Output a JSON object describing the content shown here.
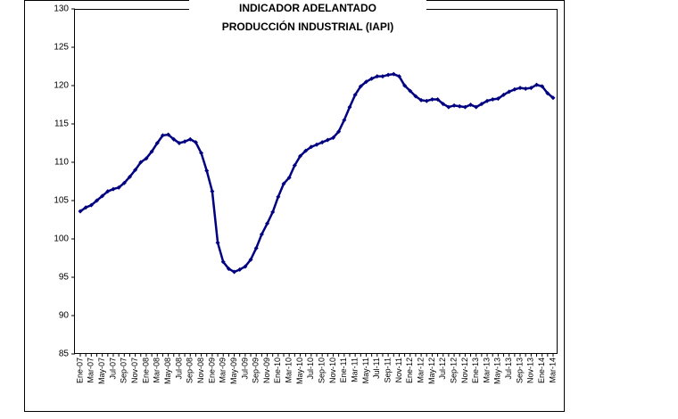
{
  "chart_data": {
    "type": "line",
    "title": [
      "INDICADOR ADELANTADO",
      "PRODUCCIÓN INDUSTRIAL (IAPI)"
    ],
    "categories": [
      "Ene-07",
      null,
      "Mar-07",
      null,
      "May-07",
      null,
      "Jul-07",
      null,
      "Sep-07",
      null,
      "Nov-07",
      null,
      "Ene-08",
      null,
      "Mar-08",
      null,
      "May-08",
      null,
      "Jul-08",
      null,
      "Sep-08",
      null,
      "Nov-08",
      null,
      "Ene-09",
      null,
      "Mar-09",
      null,
      "May-09",
      null,
      "Jul-09",
      null,
      "Sep-09",
      null,
      "Nov-09",
      null,
      "Ene-10",
      null,
      "Mar-10",
      null,
      "May-10",
      null,
      "Jul-10",
      null,
      "Sep-10",
      null,
      "Nov-10",
      null,
      "Ene-11",
      null,
      "Mar-11",
      null,
      "May-11",
      null,
      "Jul-11",
      null,
      "Sep-11",
      null,
      "Nov-11",
      null,
      "Ene-12",
      null,
      "Mar-12",
      null,
      "May-12",
      null,
      "Jul-12",
      null,
      "Sep-12",
      null,
      "Nov-12",
      null,
      "Ene-13",
      null,
      "Mar-13",
      null,
      "May-13",
      null,
      "Jul-13",
      null,
      "Sep-13",
      null,
      "Nov-13",
      null,
      "Ene-14",
      null,
      "Mar-14"
    ],
    "series": [
      {
        "name": null,
        "color": "#000080",
        "values": [
          103.6,
          104.1,
          104.4,
          105.0,
          105.6,
          106.2,
          106.5,
          106.7,
          107.3,
          108.1,
          109.0,
          110.0,
          110.5,
          111.4,
          112.5,
          113.5,
          113.6,
          113.0,
          112.5,
          112.7,
          113.0,
          112.6,
          111.2,
          108.9,
          106.2,
          99.5,
          97.0,
          96.1,
          95.7,
          96.0,
          96.4,
          97.3,
          98.8,
          100.6,
          102.0,
          103.5,
          105.5,
          107.2,
          108.0,
          109.6,
          110.8,
          111.5,
          112.0,
          112.3,
          112.6,
          112.9,
          113.2,
          114.0,
          115.5,
          117.2,
          118.8,
          119.9,
          120.5,
          120.9,
          121.2,
          121.2,
          121.4,
          121.5,
          121.2,
          120.0,
          119.3,
          118.6,
          118.1,
          118.0,
          118.2,
          118.2,
          117.6,
          117.2,
          117.4,
          117.3,
          117.2,
          117.5,
          117.2,
          117.6,
          118.0,
          118.2,
          118.3,
          118.8,
          119.2,
          119.5,
          119.7,
          119.6,
          119.7,
          120.1,
          119.9,
          119.0,
          118.4
        ]
      }
    ],
    "ylim": [
      85,
      130
    ],
    "yticks": [
      85,
      90,
      95,
      100,
      105,
      110,
      115,
      120,
      125,
      130
    ]
  }
}
